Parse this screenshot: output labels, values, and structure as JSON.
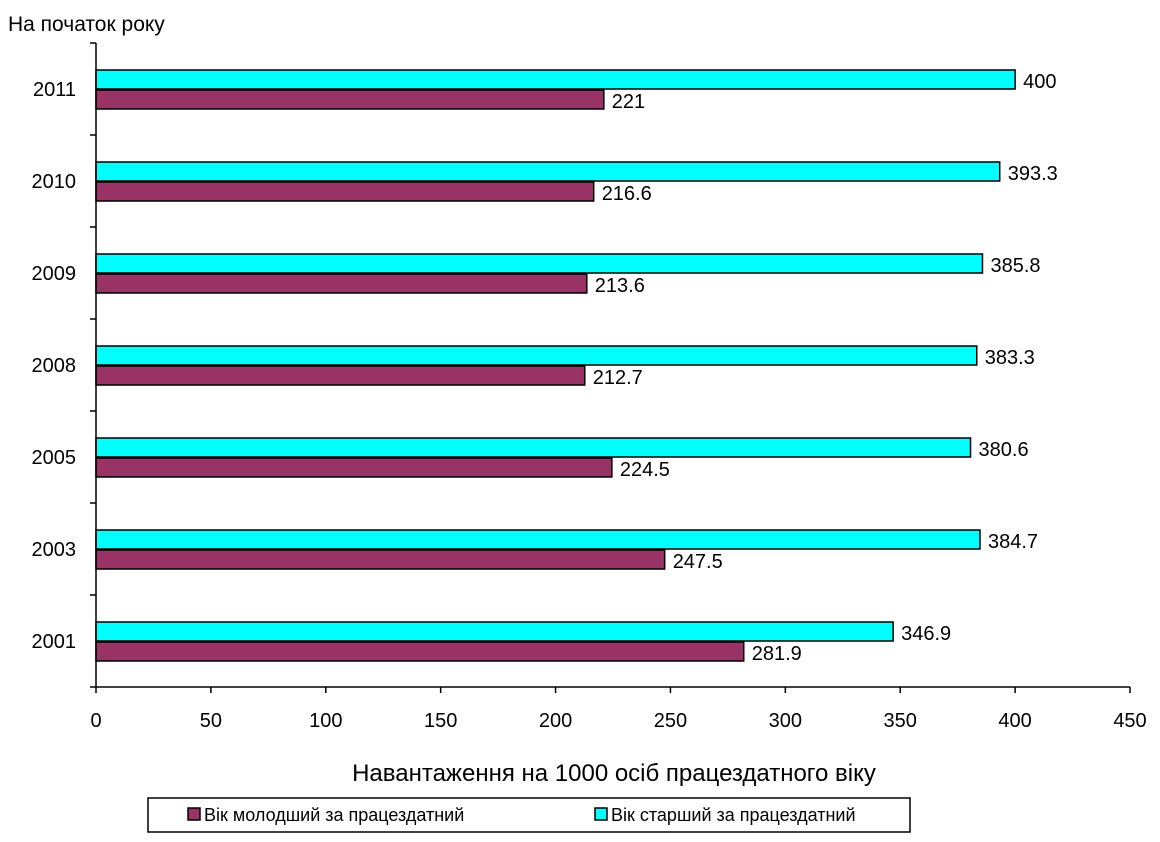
{
  "chart_data": {
    "type": "bar",
    "orientation": "horizontal",
    "title": "",
    "ylabel": "На початок року",
    "xlabel": "Навантаження на 1000 осіб працездатного віку",
    "categories": [
      "2001",
      "2003",
      "2005",
      "2008",
      "2009",
      "2010",
      "2011"
    ],
    "category_order": "bottom-to-top",
    "series": [
      {
        "name": "Вік старший за працездатний",
        "color": "#00FFFF",
        "values": [
          346.9,
          384.7,
          380.6,
          383.3,
          385.8,
          393.3,
          400
        ]
      },
      {
        "name": "Вік молодший за працездатний",
        "color": "#993366",
        "values": [
          281.9,
          247.5,
          224.5,
          212.7,
          213.6,
          216.6,
          221
        ]
      }
    ],
    "data_labels": {
      "Вік старший за працездатний": [
        "346.9",
        "384.7",
        "380.6",
        "383.3",
        "385.8",
        "393.3",
        "400"
      ],
      "Вік молодший за працездатний": [
        "281.9",
        "247.5",
        "224.5",
        "212.7",
        "213.6",
        "216.6",
        "221"
      ]
    },
    "xlim": [
      0,
      450
    ],
    "xticks": [
      0,
      50,
      100,
      150,
      200,
      250,
      300,
      350,
      400,
      450
    ],
    "xtick_labels": [
      "0",
      "50",
      "100",
      "150",
      "200",
      "250",
      "300",
      "350",
      "400",
      "450"
    ],
    "grid": false,
    "legend": {
      "position": "bottom",
      "entries": [
        {
          "label": "Вік молодший за працездатний",
          "color": "#993366"
        },
        {
          "label": "Вік старший за працездатний",
          "color": "#00FFFF"
        }
      ]
    }
  }
}
